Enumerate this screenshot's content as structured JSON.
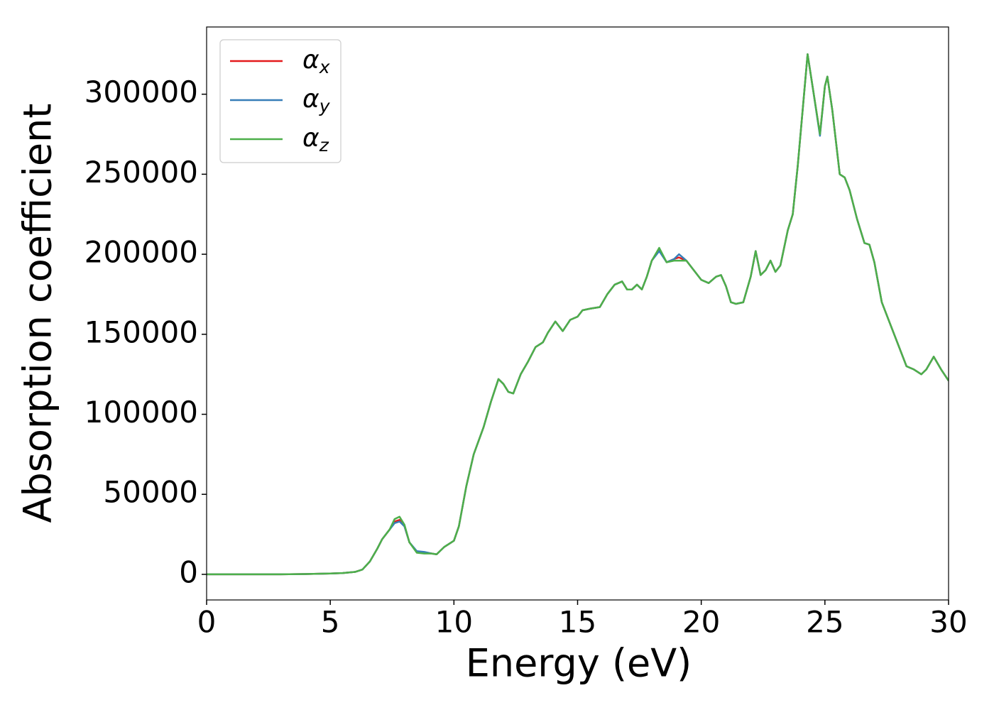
{
  "chart_data": {
    "type": "line",
    "xlabel": "Energy (eV)",
    "ylabel": "Absorption coefficient",
    "x": [
      0,
      1,
      2,
      3,
      4,
      5,
      5.5,
      6,
      6.3,
      6.6,
      6.9,
      7.1,
      7.4,
      7.6,
      7.8,
      8.0,
      8.2,
      8.5,
      8.8,
      9.1,
      9.3,
      9.6,
      10,
      10.2,
      10.5,
      10.8,
      11.2,
      11.5,
      11.8,
      12.0,
      12.2,
      12.4,
      12.7,
      13.0,
      13.3,
      13.6,
      13.8,
      14.1,
      14.4,
      14.7,
      15.0,
      15.2,
      15.5,
      15.9,
      16.2,
      16.5,
      16.8,
      17.0,
      17.2,
      17.4,
      17.6,
      17.8,
      18.0,
      18.3,
      18.6,
      18.9,
      19.1,
      19.4,
      19.7,
      20.0,
      20.3,
      20.6,
      20.8,
      21.0,
      21.2,
      21.4,
      21.7,
      22.0,
      22.2,
      22.4,
      22.6,
      22.8,
      23.0,
      23.2,
      23.5,
      23.7,
      23.9,
      24.1,
      24.3,
      24.5,
      24.8,
      25.0,
      25.1,
      25.3,
      25.6,
      25.8,
      26.0,
      26.3,
      26.6,
      26.8,
      27.0,
      27.3,
      27.6,
      28.0,
      28.3,
      28.6,
      28.9,
      29.1,
      29.4,
      29.7,
      30
    ],
    "series": [
      {
        "name": "α_x",
        "color": "#e41a1c",
        "values": [
          0,
          0,
          0,
          0,
          200,
          500,
          800,
          1500,
          3000,
          8000,
          16000,
          22000,
          28000,
          33000,
          34000,
          30000,
          20000,
          14000,
          13500,
          13000,
          12500,
          17000,
          21000,
          30000,
          55000,
          75000,
          92000,
          108000,
          122000,
          119000,
          114000,
          113000,
          125000,
          133000,
          142000,
          145000,
          151000,
          158000,
          152000,
          159000,
          161000,
          165000,
          166000,
          167000,
          175000,
          181000,
          183000,
          178000,
          178000,
          181000,
          178000,
          186000,
          196000,
          203000,
          195000,
          197000,
          198000,
          196000,
          190000,
          184000,
          182000,
          186000,
          187000,
          180000,
          170000,
          169000,
          170000,
          186000,
          202000,
          187000,
          190000,
          196000,
          189000,
          193000,
          215000,
          225000,
          255000,
          290000,
          325000,
          305000,
          275000,
          305000,
          311000,
          290000,
          250000,
          248000,
          240000,
          222000,
          207000,
          206000,
          195000,
          170000,
          158000,
          142000,
          130000,
          128000,
          125000,
          128000,
          136000,
          128000,
          121000
        ]
      },
      {
        "name": "α_y",
        "color": "#377eb8",
        "values": [
          0,
          0,
          0,
          0,
          200,
          500,
          800,
          1500,
          3000,
          8000,
          16000,
          22000,
          28000,
          32000,
          33000,
          30000,
          20000,
          14500,
          14000,
          13000,
          12500,
          17000,
          21000,
          30000,
          55000,
          75000,
          92000,
          108000,
          122000,
          119000,
          114000,
          113000,
          125000,
          133000,
          142000,
          145000,
          151000,
          158000,
          152000,
          159000,
          161000,
          165000,
          166000,
          167000,
          175000,
          181000,
          183000,
          178000,
          178000,
          181000,
          178000,
          186000,
          196000,
          202000,
          195000,
          197000,
          200000,
          196000,
          190000,
          184000,
          182000,
          186000,
          187000,
          180000,
          170000,
          169000,
          170000,
          186000,
          202000,
          187000,
          190000,
          196000,
          189000,
          193000,
          215000,
          225000,
          255000,
          290000,
          325000,
          305000,
          274000,
          305000,
          311000,
          290000,
          250000,
          248000,
          240000,
          222000,
          207000,
          206000,
          195000,
          170000,
          158000,
          142000,
          130000,
          128000,
          125000,
          128000,
          136000,
          128000,
          121000
        ]
      },
      {
        "name": "α_z",
        "color": "#4daf4a",
        "values": [
          0,
          0,
          0,
          0,
          200,
          500,
          800,
          1500,
          3000,
          8000,
          16000,
          22000,
          28000,
          34500,
          36000,
          31000,
          20000,
          13500,
          13000,
          13000,
          12500,
          17000,
          21000,
          30000,
          55000,
          75000,
          92000,
          108000,
          122000,
          119000,
          114000,
          113000,
          125000,
          133000,
          142000,
          145000,
          151000,
          158000,
          152000,
          159000,
          161000,
          165000,
          166000,
          167000,
          175000,
          181000,
          183000,
          178000,
          178000,
          181000,
          178000,
          186000,
          196000,
          204000,
          195000,
          196000,
          196000,
          196000,
          190000,
          184000,
          182000,
          186000,
          187000,
          180000,
          170000,
          169000,
          170000,
          186000,
          202000,
          187000,
          190000,
          196000,
          189000,
          193000,
          215000,
          225000,
          255000,
          290000,
          325000,
          305000,
          275000,
          305000,
          311000,
          290000,
          250000,
          248000,
          240000,
          222000,
          207000,
          206000,
          195000,
          170000,
          158000,
          142000,
          130000,
          128000,
          125000,
          128000,
          136000,
          128000,
          121000
        ]
      }
    ],
    "xlim": [
      0,
      30
    ],
    "xticks": [
      0,
      5,
      10,
      15,
      20,
      25,
      30
    ],
    "ylim": [
      -16000,
      342000
    ],
    "yticks": [
      0,
      50000,
      100000,
      150000,
      200000,
      250000,
      300000
    ],
    "legend": "upper left"
  }
}
